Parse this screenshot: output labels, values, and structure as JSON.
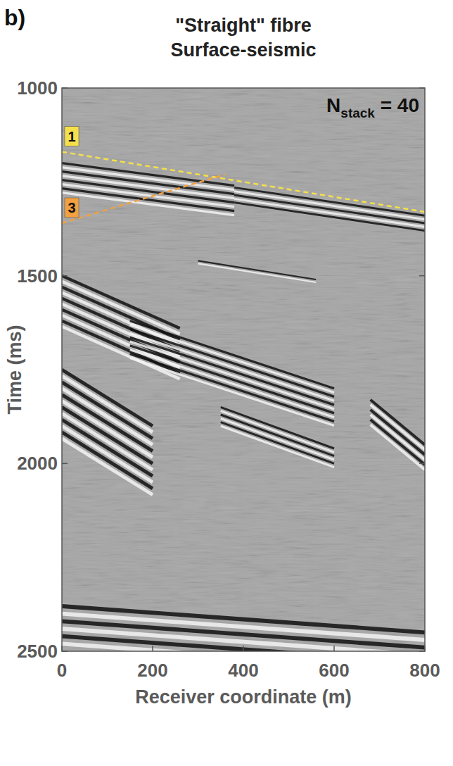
{
  "chart_data": {
    "type": "seismic",
    "panel": "b)",
    "title": "\"Straight\" fibre",
    "subtitle": "Surface-seismic",
    "xlabel": "Receiver coordinate (m)",
    "ylabel": "Time (ms)",
    "xlim": [
      0,
      800
    ],
    "xticks": [
      0,
      200,
      400,
      600,
      800
    ],
    "ylim": [
      1000,
      2500
    ],
    "yticks": [
      1000,
      1500,
      2000,
      2500
    ],
    "stack_label": {
      "base": "N",
      "sub": "stack",
      "rest": " = 40"
    },
    "picks": [
      {
        "label": "1",
        "color": "#f5e04a",
        "x": [
          0,
          800
        ],
        "t": [
          1170,
          1330
        ]
      },
      {
        "label": "3",
        "color": "#f2a040",
        "x": [
          0,
          360
        ],
        "t": [
          1360,
          1230
        ]
      }
    ],
    "events": [
      {
        "x": [
          0,
          380
        ],
        "t": [
          1200,
          1260
        ],
        "thickness": 90,
        "cycles": 8
      },
      {
        "x": [
          380,
          800
        ],
        "t": [
          1265,
          1340
        ],
        "thickness": 50,
        "cycles": 5
      },
      {
        "x": [
          300,
          560
        ],
        "t": [
          1460,
          1510
        ],
        "thickness": 15,
        "cycles": 2
      },
      {
        "x": [
          0,
          260
        ],
        "t": [
          1500,
          1640
        ],
        "thickness": 150,
        "cycles": 10
      },
      {
        "x": [
          150,
          600
        ],
        "t": [
          1620,
          1800
        ],
        "thickness": 110,
        "cycles": 10
      },
      {
        "x": [
          350,
          600
        ],
        "t": [
          1850,
          1960
        ],
        "thickness": 60,
        "cycles": 6
      },
      {
        "x": [
          680,
          800
        ],
        "t": [
          1830,
          1950
        ],
        "thickness": 80,
        "cycles": 6
      },
      {
        "x": [
          0,
          200
        ],
        "t": [
          1750,
          1900
        ],
        "thickness": 200,
        "cycles": 12
      },
      {
        "x": [
          0,
          800
        ],
        "t": [
          2380,
          2450
        ],
        "thickness": 120,
        "cycles": 6
      }
    ]
  }
}
